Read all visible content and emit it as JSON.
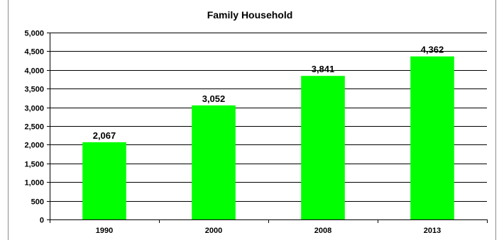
{
  "chart_data": {
    "type": "bar",
    "title": "Family Household",
    "categories": [
      "1990",
      "2000",
      "2008",
      "2013"
    ],
    "values": [
      2067,
      3052,
      3841,
      4362
    ],
    "data_labels": [
      "2,067",
      "3,052",
      "3,841",
      "4,362"
    ],
    "ylim": [
      0,
      5000
    ],
    "y_ticks": [
      0,
      500,
      1000,
      1500,
      2000,
      2500,
      3000,
      3500,
      4000,
      4500,
      5000
    ],
    "y_tick_labels": [
      "0",
      "500",
      "1,000",
      "1,500",
      "2,000",
      "2,500",
      "3,000",
      "3,500",
      "4,000",
      "4,500",
      "5,000"
    ],
    "xlabel": "",
    "ylabel": "",
    "grid": true,
    "legend": "none",
    "colors": {
      "bar": "#00ff00",
      "grid": "#000000",
      "axis": "#000000",
      "frame": "#8c8c8c"
    }
  }
}
